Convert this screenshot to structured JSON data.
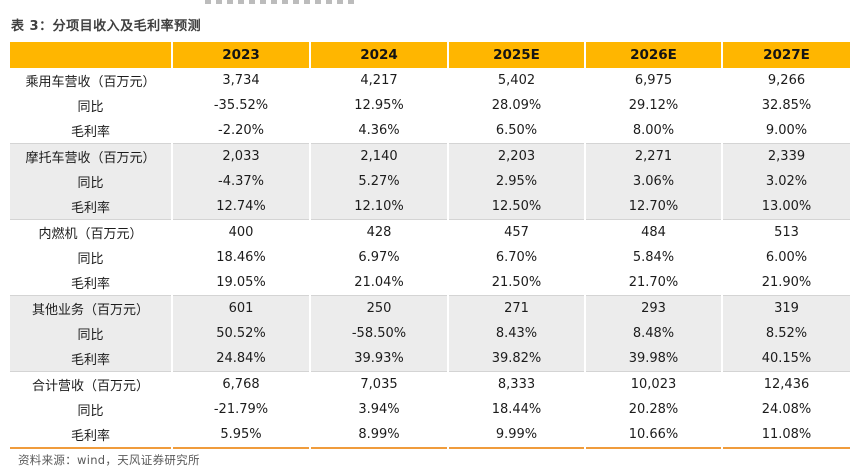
{
  "page": {
    "title": "表 3：分项目收入及毛利率预测",
    "source_note": "资料来源：wind，天风证券研究所"
  },
  "colors": {
    "header_bg": "#FFB600",
    "stripe_bg": "#ECECEC",
    "bottom_rule": "#F09C3C",
    "title_text": "#3F3F3F",
    "body_text": "#1C1C1C",
    "source_text": "#595959"
  },
  "table": {
    "columns": [
      "",
      "2023",
      "2024",
      "2025E",
      "2026E",
      "2027E"
    ],
    "rows": [
      {
        "label": "乘用车营收（百万元）",
        "values": [
          "3,734",
          "4,217",
          "5,402",
          "6,975",
          "9,266"
        ]
      },
      {
        "label": "同比",
        "values": [
          "-35.52%",
          "12.95%",
          "28.09%",
          "29.12%",
          "32.85%"
        ]
      },
      {
        "label": "毛利率",
        "values": [
          "-2.20%",
          "4.36%",
          "6.50%",
          "8.00%",
          "9.00%"
        ]
      },
      {
        "label": "摩托车营收（百万元）",
        "values": [
          "2,033",
          "2,140",
          "2,203",
          "2,271",
          "2,339"
        ]
      },
      {
        "label": "同比",
        "values": [
          "-4.37%",
          "5.27%",
          "2.95%",
          "3.06%",
          "3.02%"
        ]
      },
      {
        "label": "毛利率",
        "values": [
          "12.74%",
          "12.10%",
          "12.50%",
          "12.70%",
          "13.00%"
        ]
      },
      {
        "label": "内燃机（百万元）",
        "values": [
          "400",
          "428",
          "457",
          "484",
          "513"
        ]
      },
      {
        "label": "同比",
        "values": [
          "18.46%",
          "6.97%",
          "6.70%",
          "5.84%",
          "6.00%"
        ]
      },
      {
        "label": "毛利率",
        "values": [
          "19.05%",
          "21.04%",
          "21.50%",
          "21.70%",
          "21.90%"
        ]
      },
      {
        "label": "其他业务（百万元）",
        "values": [
          "601",
          "250",
          "271",
          "293",
          "319"
        ]
      },
      {
        "label": "同比",
        "values": [
          "50.52%",
          "-58.50%",
          "8.43%",
          "8.48%",
          "8.52%"
        ]
      },
      {
        "label": "毛利率",
        "values": [
          "24.84%",
          "39.93%",
          "39.82%",
          "39.98%",
          "40.15%"
        ]
      },
      {
        "label": "合计营收（百万元）",
        "values": [
          "6,768",
          "7,035",
          "8,333",
          "10,023",
          "12,436"
        ]
      },
      {
        "label": "同比",
        "values": [
          "-21.79%",
          "3.94%",
          "18.44%",
          "20.28%",
          "24.08%"
        ]
      },
      {
        "label": "毛利率",
        "values": [
          "5.95%",
          "8.99%",
          "9.99%",
          "10.66%",
          "11.08%"
        ]
      }
    ]
  }
}
